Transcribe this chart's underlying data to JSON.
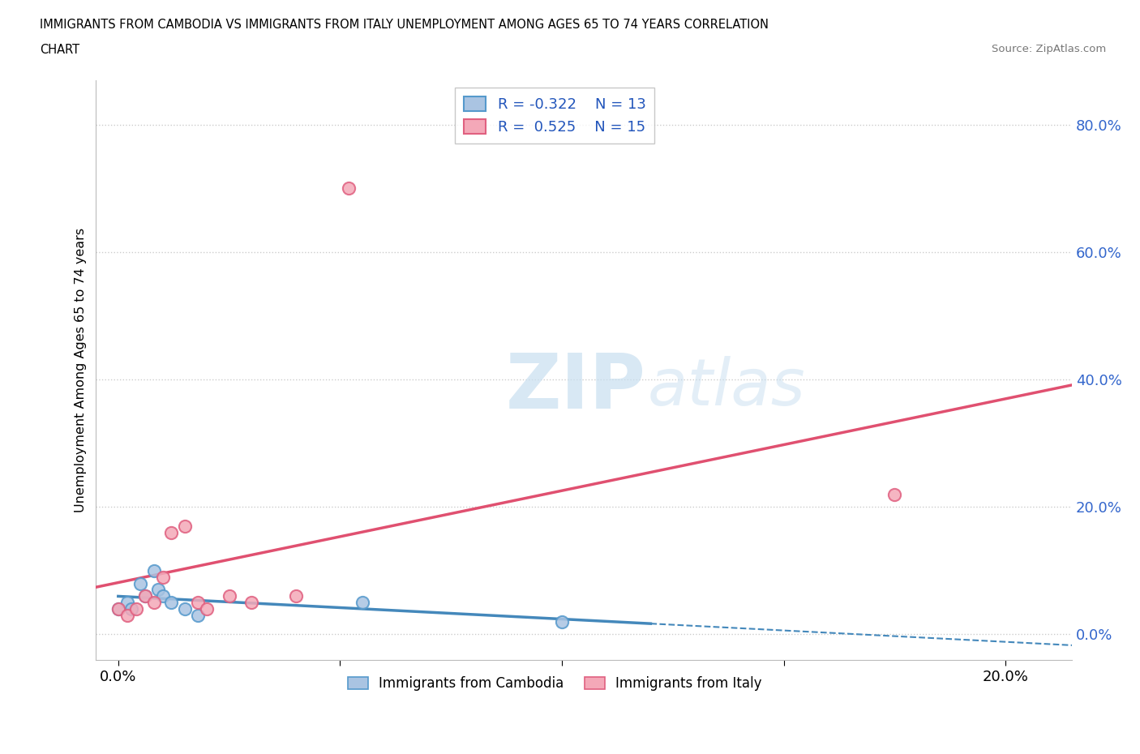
{
  "title_line1": "IMMIGRANTS FROM CAMBODIA VS IMMIGRANTS FROM ITALY UNEMPLOYMENT AMONG AGES 65 TO 74 YEARS CORRELATION",
  "title_line2": "CHART",
  "source": "Source: ZipAtlas.com",
  "ylabel": "Unemployment Among Ages 65 to 74 years",
  "cambodia_R": -0.322,
  "cambodia_N": 13,
  "italy_R": 0.525,
  "italy_N": 15,
  "cambodia_color": "#aac4e2",
  "italy_color": "#f4a8b8",
  "cambodia_edge_color": "#5599cc",
  "italy_edge_color": "#e06080",
  "cambodia_line_color": "#4488bb",
  "italy_line_color": "#e05070",
  "background_color": "#ffffff",
  "grid_color": "#cccccc",
  "watermark_zip": "ZIP",
  "watermark_atlas": "atlas",
  "cambodia_scatter_x": [
    0.0,
    0.002,
    0.003,
    0.005,
    0.006,
    0.008,
    0.009,
    0.01,
    0.012,
    0.015,
    0.018,
    0.055,
    0.1
  ],
  "cambodia_scatter_y": [
    0.04,
    0.05,
    0.04,
    0.08,
    0.06,
    0.1,
    0.07,
    0.06,
    0.05,
    0.04,
    0.03,
    0.05,
    0.02
  ],
  "italy_scatter_x": [
    0.0,
    0.002,
    0.004,
    0.006,
    0.008,
    0.01,
    0.012,
    0.015,
    0.018,
    0.02,
    0.025,
    0.03,
    0.04,
    0.052,
    0.175
  ],
  "italy_scatter_y": [
    0.04,
    0.03,
    0.04,
    0.06,
    0.05,
    0.09,
    0.16,
    0.17,
    0.05,
    0.04,
    0.06,
    0.05,
    0.06,
    0.7,
    0.22
  ],
  "xlim_min": -0.005,
  "xlim_max": 0.215,
  "ylim_min": -0.04,
  "ylim_max": 0.87,
  "ytick_vals": [
    0.0,
    0.2,
    0.4,
    0.6,
    0.8
  ],
  "ytick_labels": [
    "0.0%",
    "20.0%",
    "40.0%",
    "60.0%",
    "80.0%"
  ],
  "xtick_vals": [
    0.0,
    0.05,
    0.1,
    0.15,
    0.2
  ],
  "xtick_labels": [
    "0.0%",
    "",
    "",
    "",
    "20.0%"
  ]
}
